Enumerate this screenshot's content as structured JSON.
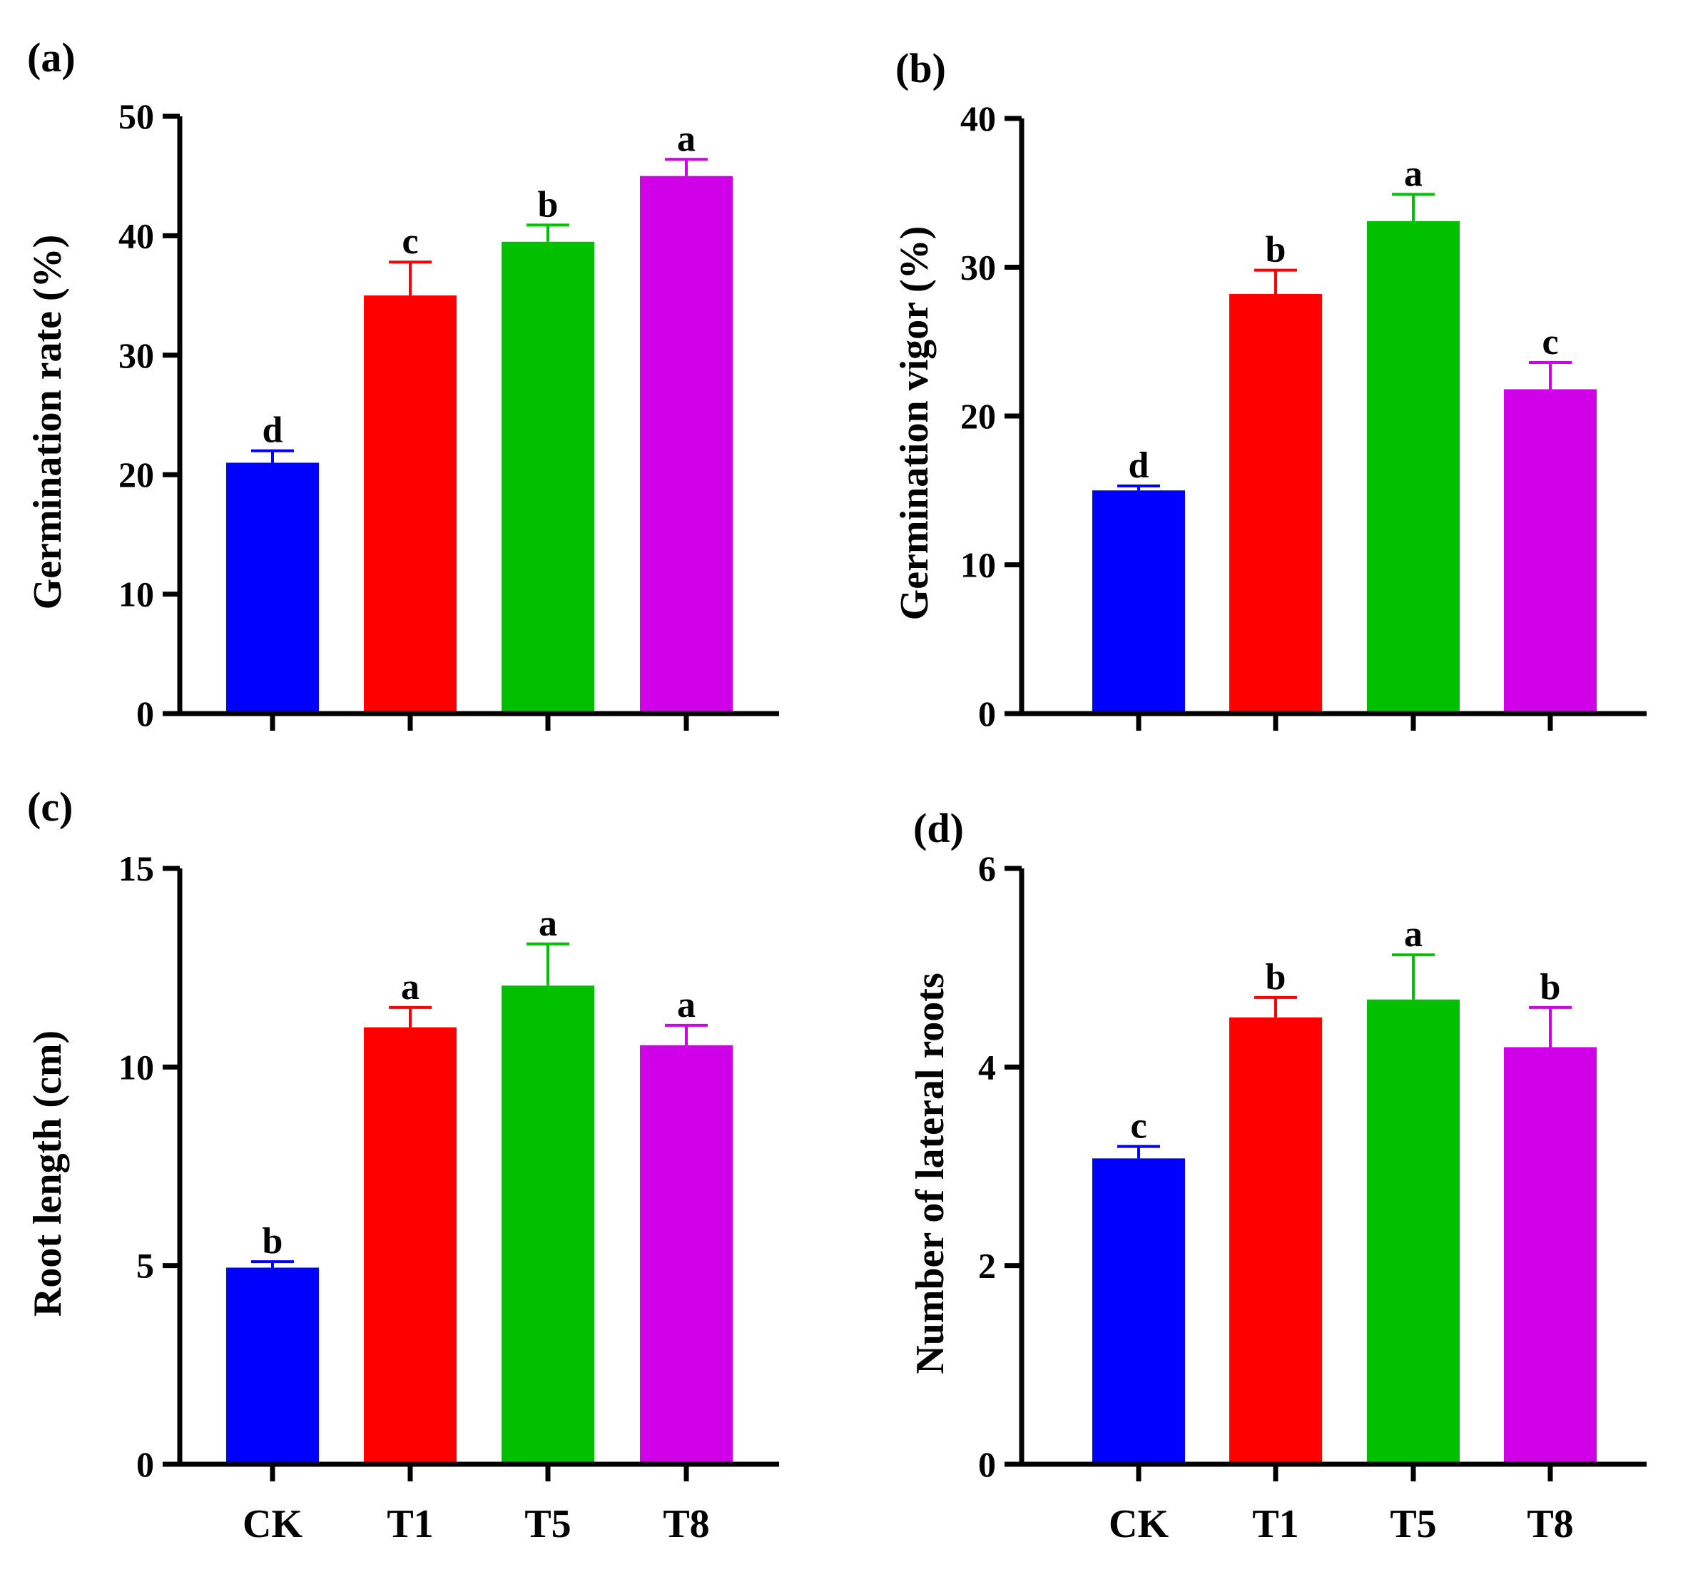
{
  "chart_data": [
    {
      "panel": "(a)",
      "type": "bar",
      "ylabel": "Germination rate (%)",
      "ylim": [
        0,
        50
      ],
      "yticks": [
        0,
        10,
        20,
        30,
        40,
        50
      ],
      "categories": [
        "CK",
        "T1",
        "T5",
        "T8"
      ],
      "show_category_labels": false,
      "values": [
        21.0,
        35.0,
        39.5,
        45.0
      ],
      "errors": [
        1.0,
        2.8,
        1.4,
        1.4
      ],
      "letters": [
        "d",
        "c",
        "b",
        "a"
      ]
    },
    {
      "panel": "(b)",
      "type": "bar",
      "ylabel": "Germination vigor (%)",
      "ylim": [
        0,
        40
      ],
      "yticks": [
        0,
        10,
        20,
        30,
        40
      ],
      "categories": [
        "CK",
        "T1",
        "T5",
        "T8"
      ],
      "show_category_labels": false,
      "values": [
        15.0,
        28.2,
        33.1,
        21.8
      ],
      "errors": [
        0.3,
        1.6,
        1.8,
        1.8
      ],
      "letters": [
        "d",
        "b",
        "a",
        "c"
      ]
    },
    {
      "panel": "(c)",
      "type": "bar",
      "ylabel": "Root length (cm)",
      "ylim": [
        0,
        15
      ],
      "yticks": [
        0,
        5,
        10,
        15
      ],
      "categories": [
        "CK",
        "T1",
        "T5",
        "T8"
      ],
      "show_category_labels": true,
      "values": [
        4.95,
        11.0,
        12.05,
        10.55
      ],
      "errors": [
        0.15,
        0.5,
        1.05,
        0.5
      ],
      "letters": [
        "b",
        "a",
        "a",
        "a"
      ]
    },
    {
      "panel": "(d)",
      "type": "bar",
      "ylabel": "Number of lateral roots",
      "ylim": [
        0,
        6
      ],
      "yticks": [
        0,
        2,
        4,
        6
      ],
      "categories": [
        "CK",
        "T1",
        "T5",
        "T8"
      ],
      "show_category_labels": true,
      "values": [
        3.08,
        4.5,
        4.68,
        4.2
      ],
      "errors": [
        0.12,
        0.2,
        0.45,
        0.4
      ],
      "letters": [
        "c",
        "b",
        "a",
        "b"
      ]
    }
  ],
  "colors": {
    "CK": "#0000ff",
    "T1": "#ff0000",
    "T5": "#00c000",
    "T8": "#d000e8",
    "axis": "#000000"
  }
}
